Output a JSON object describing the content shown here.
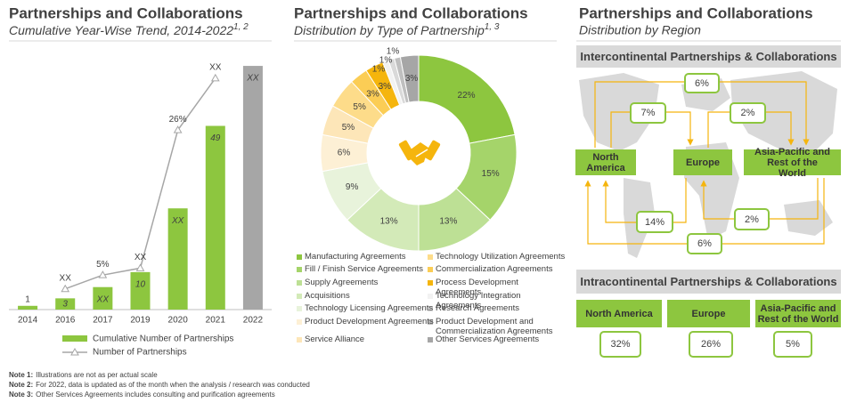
{
  "chart_data": [
    {
      "type": "bar",
      "title": "Partnerships and Collaborations",
      "subtitle": "Cumulative Year-Wise Trend, 2014-2022",
      "subtitle_note": "1, 2",
      "categories": [
        "2014",
        "2016",
        "2017",
        "2019",
        "2020",
        "2021",
        "2022"
      ],
      "ylim": [
        0,
        70
      ],
      "y2lim": [
        0,
        38
      ],
      "series": [
        {
          "name": "Cumulative Number of Partnerships",
          "type": "bar",
          "color": "#8dc63f",
          "colors": [
            "#8dc63f",
            "#8dc63f",
            "#8dc63f",
            "#8dc63f",
            "#8dc63f",
            "#8dc63f",
            "#a6a6a6"
          ],
          "values": [
            1,
            3,
            6,
            10,
            27,
            49,
            65
          ],
          "value_labels": [
            "1",
            "3",
            "XX",
            "10",
            "XX",
            "49",
            "XX"
          ]
        },
        {
          "name": "Number of Partnerships",
          "type": "line",
          "axis": "y2",
          "color": "#a6a6a6",
          "values": [
            null,
            3,
            5,
            6,
            26,
            33.5,
            null
          ],
          "value_labels": [
            null,
            "XX",
            "5%",
            "XX",
            "26%",
            "XX",
            null
          ]
        }
      ]
    },
    {
      "type": "pie",
      "donut": true,
      "title": "Partnerships and Collaborations",
      "subtitle": "Distribution by Type of Partnership",
      "subtitle_note": "1, 3",
      "categories": [
        "Manufacturing Agreements",
        "Fill / Finish Service Agreements",
        "Supply Agreements",
        "Acquisitions",
        "Technology Licensing Agreements",
        "Product Development Agreements",
        "Service Alliance",
        "Technology Utilization  Agreements",
        "Commercialization  Agreements",
        "Process Development Agreements",
        "Technology Integration Agreements",
        "Research Agreements",
        "Product Development and Commercialization Agreements",
        "Other Services Agreements"
      ],
      "values": [
        22,
        15,
        13,
        13,
        9,
        6,
        5,
        5,
        3,
        3,
        1,
        1,
        1,
        3
      ],
      "value_labels": [
        "22%",
        "15%",
        "13%",
        "13%",
        "9%",
        "6%",
        "5%",
        "5%",
        "3%",
        "3%",
        "1%",
        "1%",
        "1%",
        "3%"
      ],
      "colors": [
        "#8dc63f",
        "#a5d46a",
        "#bde095",
        "#d3eab8",
        "#e8f3db",
        "#fdf0d5",
        "#fde6b8",
        "#fddc8a",
        "#fbcd55",
        "#f5b50d",
        "#f2f2f2",
        "#d9d9d9",
        "#bfbfbf",
        "#a6a6a6"
      ]
    }
  ],
  "region_panel": {
    "title": "Partnerships and Collaborations",
    "subtitle": "Distribution by Region",
    "intercontinental": {
      "heading": "Intercontinental Partnerships & Collaborations",
      "regions": [
        "North America",
        "Europe",
        "Asia-Pacific  and Rest of the World"
      ],
      "flows": [
        "6%",
        "7%",
        "2%",
        "14%",
        "2%",
        "6%"
      ]
    },
    "intracontinental": {
      "heading": "Intracontinental Partnerships & Collaborations",
      "regions": [
        {
          "name": "North America",
          "share": "32%"
        },
        {
          "name": "Europe",
          "share": "26%"
        },
        {
          "name": "Asia-Pacific and Rest of the World",
          "share": "5%"
        }
      ]
    }
  },
  "notes": [
    {
      "label": "Note 1:",
      "text": "Illustrations are not as per actual scale"
    },
    {
      "label": "Note 2:",
      "text": "For 2022, data is updated as of the month when the analysis / research was conducted"
    },
    {
      "label": "Note 3:",
      "text": "Other Services Agreements includes consulting and purification agreements"
    }
  ]
}
